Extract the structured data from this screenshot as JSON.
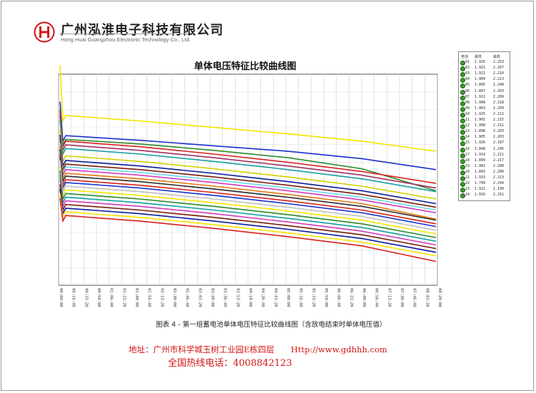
{
  "header": {
    "company_cn": "广州泓淮电子科技有限公司",
    "company_en": "Hong Huai Guangzhou Electronic Technology Co., Ltd."
  },
  "legend": {
    "headers": [
      "电池",
      "最低",
      "最高"
    ],
    "rows": [
      {
        "id": "01",
        "min": "1.925",
        "max": "2.253"
      },
      {
        "id": "02",
        "min": "1.921",
        "max": "2.207"
      },
      {
        "id": "03",
        "min": "1.922",
        "max": "2.210"
      },
      {
        "id": "04",
        "min": "1.909",
        "max": "2.213"
      },
      {
        "id": "05",
        "min": "1.895",
        "max": "2.248"
      },
      {
        "id": "06",
        "min": "1.897",
        "max": "2.203"
      },
      {
        "id": "07",
        "min": "1.911",
        "max": "2.209"
      },
      {
        "id": "08",
        "min": "1.908",
        "max": "2.218"
      },
      {
        "id": "09",
        "min": "1.903",
        "max": "2.250"
      },
      {
        "id": "10",
        "min": "1.925",
        "max": "2.212"
      },
      {
        "id": "11",
        "min": "1.901",
        "max": "2.215"
      },
      {
        "id": "12",
        "min": "1.908",
        "max": "2.211"
      },
      {
        "id": "13",
        "min": "1.898",
        "max": "2.203"
      },
      {
        "id": "14",
        "min": "1.905",
        "max": "2.203"
      },
      {
        "id": "15",
        "min": "1.926",
        "max": "2.187"
      },
      {
        "id": "16",
        "min": "1.848",
        "max": "2.245"
      },
      {
        "id": "17",
        "min": "1.914",
        "max": "2.211"
      },
      {
        "id": "18",
        "min": "1.899",
        "max": "2.217"
      },
      {
        "id": "19",
        "min": "1.902",
        "max": "2.208"
      },
      {
        "id": "20",
        "min": "1.893",
        "max": "2.200"
      },
      {
        "id": "21",
        "min": "1.933",
        "max": "2.213"
      },
      {
        "id": "22",
        "min": "1.799",
        "max": "2.244"
      },
      {
        "id": "23",
        "min": "1.921",
        "max": "2.199"
      },
      {
        "id": "24",
        "min": "1.910",
        "max": "2.251"
      }
    ]
  },
  "chart_data": {
    "type": "line",
    "title": "单体电压特征比较曲线图",
    "x_ticks": [
      "00:00:00",
      "00:16:40",
      "00:33:20",
      "00:50:00",
      "01:06:40",
      "01:23:20",
      "01:40:00",
      "01:56:40",
      "02:13:20",
      "02:30:00",
      "02:46:40",
      "03:03:20",
      "03:20:00",
      "03:36:40",
      "03:53:20",
      "04:10:00",
      "04:26:40",
      "04:43:20",
      "05:00:00",
      "05:16:40",
      "05:33:20",
      "05:50:00",
      "06:06:40",
      "06:23:20",
      "06:40:00",
      "06:56:40",
      "07:13:20",
      "07:30:00",
      "07:46:40",
      "08:03:20",
      "08:20:00"
    ],
    "grid": true,
    "legend_position": "right",
    "series": [
      {
        "color": "#f2e600",
        "values": [
          2.26,
          2.225,
          2.219,
          2.212,
          2.205,
          2.197,
          2.186
        ]
      },
      {
        "color": "#1a2fd0",
        "values": [
          2.22,
          2.203,
          2.198,
          2.192,
          2.186,
          2.178,
          2.166
        ]
      },
      {
        "color": "#2b8a2b",
        "values": [
          2.212,
          2.199,
          2.194,
          2.187,
          2.179,
          2.167,
          2.143
        ]
      },
      {
        "color": "#d82020",
        "values": [
          2.21,
          2.197,
          2.191,
          2.183,
          2.174,
          2.164,
          2.151
        ]
      },
      {
        "color": "#a03060",
        "values": [
          2.205,
          2.193,
          2.187,
          2.179,
          2.17,
          2.16,
          2.146
        ]
      },
      {
        "color": "#14a0a0",
        "values": [
          2.2,
          2.189,
          2.183,
          2.175,
          2.166,
          2.156,
          2.142
        ]
      },
      {
        "color": "#d3d000",
        "values": [
          2.19,
          2.181,
          2.175,
          2.167,
          2.158,
          2.148,
          2.134
        ]
      },
      {
        "color": "#0a1a9a",
        "values": [
          2.184,
          2.176,
          2.17,
          2.162,
          2.153,
          2.143,
          2.129
        ]
      },
      {
        "color": "#7a1d0a",
        "values": [
          2.18,
          2.172,
          2.166,
          2.158,
          2.149,
          2.139,
          2.125
        ]
      },
      {
        "color": "#66d8e8",
        "values": [
          2.175,
          2.169,
          2.163,
          2.155,
          2.146,
          2.136,
          2.122
        ]
      },
      {
        "color": "#d03cc0",
        "values": [
          2.17,
          2.166,
          2.16,
          2.152,
          2.143,
          2.133,
          2.119
        ]
      },
      {
        "color": "#e07a10",
        "values": [
          2.172,
          2.162,
          2.156,
          2.148,
          2.139,
          2.129,
          2.112
        ]
      },
      {
        "color": "#2a2a2a",
        "values": [
          2.168,
          2.159,
          2.153,
          2.145,
          2.136,
          2.126,
          2.111
        ]
      },
      {
        "color": "#d82020",
        "values": [
          2.163,
          2.155,
          2.149,
          2.141,
          2.132,
          2.122,
          2.107
        ]
      },
      {
        "color": "#1a2fd0",
        "values": [
          2.16,
          2.152,
          2.146,
          2.138,
          2.129,
          2.119,
          2.104
        ]
      },
      {
        "color": "#c0c0c0",
        "values": [
          2.156,
          2.148,
          2.142,
          2.134,
          2.125,
          2.115,
          2.1
        ]
      },
      {
        "color": "#f2e600",
        "values": [
          2.15,
          2.144,
          2.138,
          2.13,
          2.121,
          2.111,
          2.096
        ]
      },
      {
        "color": "#2b8a2b",
        "values": [
          2.145,
          2.14,
          2.134,
          2.126,
          2.117,
          2.107,
          2.092
        ]
      },
      {
        "color": "#14a0a0",
        "values": [
          2.14,
          2.136,
          2.13,
          2.122,
          2.113,
          2.103,
          2.088
        ]
      },
      {
        "color": "#d03cc0",
        "values": [
          2.135,
          2.132,
          2.126,
          2.118,
          2.109,
          2.099,
          2.084
        ]
      },
      {
        "color": "#7a1d0a",
        "values": [
          2.13,
          2.128,
          2.122,
          2.114,
          2.105,
          2.095,
          2.08
        ]
      },
      {
        "color": "#0a1a9a",
        "values": [
          2.125,
          2.124,
          2.118,
          2.11,
          2.101,
          2.091,
          2.076
        ]
      },
      {
        "color": "#f2e600",
        "values": [
          2.12,
          2.12,
          2.114,
          2.106,
          2.097,
          2.087,
          2.072
        ]
      },
      {
        "color": "#d82020",
        "values": [
          2.115,
          2.116,
          2.11,
          2.102,
          2.093,
          2.083,
          2.066
        ]
      }
    ]
  },
  "caption": "图表 4 - 第一组蓄电池单体电压特征比较曲线图（含放电结束时单体电压值）",
  "footer": {
    "address": "地址：广州市科学城玉树工业园E栋四层　　Http://www.gdhhh.com",
    "hotline": "全国热线电话：4008842123"
  }
}
